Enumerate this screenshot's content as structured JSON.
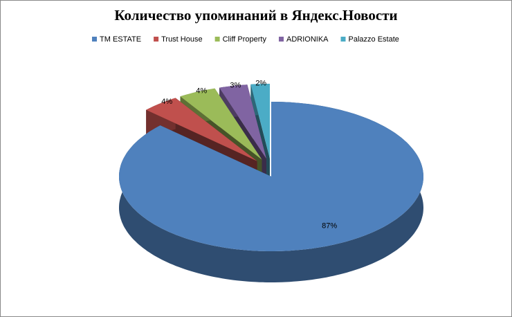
{
  "chart_data": {
    "type": "pie3d",
    "title": "Количество упоминаний в Яндекс.Новости",
    "categories": [
      "TM ESTATE",
      "Trust House",
      "Cliff Property",
      "ADRIONIKA",
      "Palazzo Estate"
    ],
    "values": [
      87,
      4,
      4,
      3,
      2
    ],
    "value_labels": [
      "87%",
      "4%",
      "4%",
      "3%",
      "2%"
    ],
    "colors": [
      "#4f81bd",
      "#c0504d",
      "#9bbb59",
      "#8064a2",
      "#4bacc6"
    ],
    "legend": "top"
  }
}
